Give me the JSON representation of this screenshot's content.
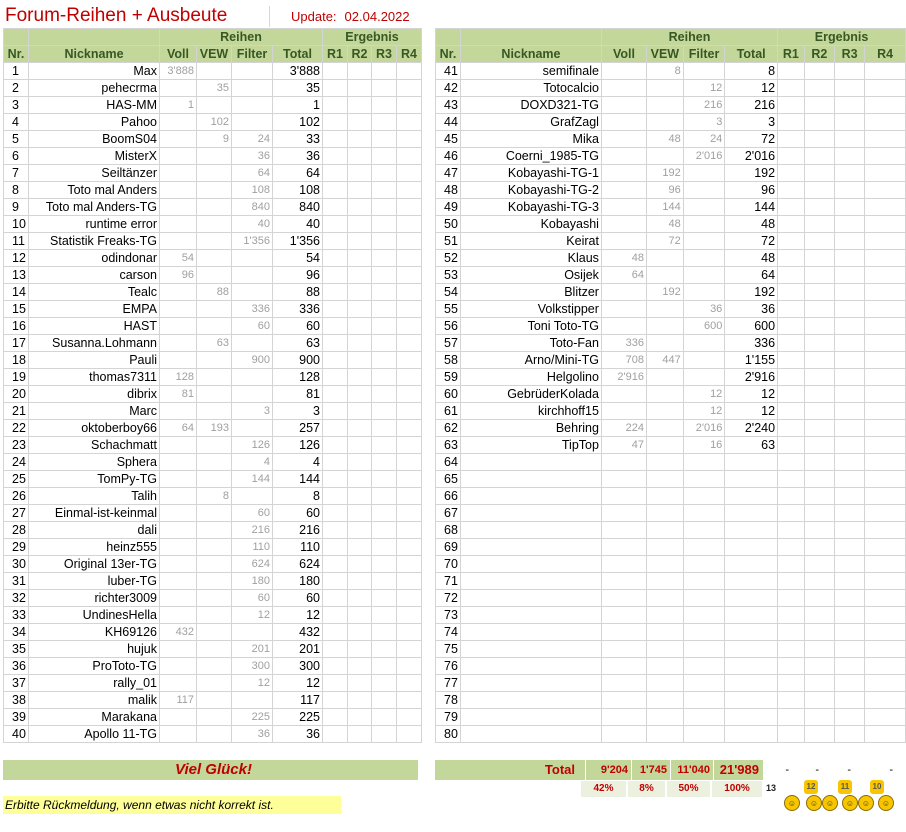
{
  "header": {
    "title": "Forum-Reihen + Ausbeute",
    "update_label": "Update:",
    "update_date": "02.04.2022"
  },
  "table_header": {
    "group_reihen": "Reihen",
    "group_ergebnis": "Ergebnis",
    "col_nr": "Nr.",
    "col_nick": "Nickname",
    "col_voll": "Voll",
    "col_vew": "VEW",
    "col_filter": "Filter",
    "col_total": "Total",
    "col_r1": "R1",
    "col_r2": "R2",
    "col_r3": "R3",
    "col_r4": "R4"
  },
  "left_rows": [
    {
      "nr": "1",
      "nick": "Max",
      "voll": "3'888",
      "vew": "",
      "filter": "",
      "total": "3'888"
    },
    {
      "nr": "2",
      "nick": "pehecrma",
      "voll": "",
      "vew": "35",
      "filter": "",
      "total": "35"
    },
    {
      "nr": "3",
      "nick": "HAS-MM",
      "voll": "1",
      "vew": "",
      "filter": "",
      "total": "1"
    },
    {
      "nr": "4",
      "nick": "Pahoo",
      "voll": "",
      "vew": "102",
      "filter": "",
      "total": "102"
    },
    {
      "nr": "5",
      "nick": "BoomS04",
      "voll": "",
      "vew": "9",
      "filter": "24",
      "total": "33"
    },
    {
      "nr": "6",
      "nick": "MisterX",
      "voll": "",
      "vew": "",
      "filter": "36",
      "total": "36"
    },
    {
      "nr": "7",
      "nick": "Seiltänzer",
      "voll": "",
      "vew": "",
      "filter": "64",
      "total": "64"
    },
    {
      "nr": "8",
      "nick": "Toto mal Anders",
      "voll": "",
      "vew": "",
      "filter": "108",
      "total": "108"
    },
    {
      "nr": "9",
      "nick": "Toto mal Anders-TG",
      "voll": "",
      "vew": "",
      "filter": "840",
      "total": "840"
    },
    {
      "nr": "10",
      "nick": "runtime error",
      "voll": "",
      "vew": "",
      "filter": "40",
      "total": "40"
    },
    {
      "nr": "11",
      "nick": "Statistik Freaks-TG",
      "voll": "",
      "vew": "",
      "filter": "1'356",
      "total": "1'356"
    },
    {
      "nr": "12",
      "nick": "odindonar",
      "voll": "54",
      "vew": "",
      "filter": "",
      "total": "54"
    },
    {
      "nr": "13",
      "nick": "carson",
      "voll": "96",
      "vew": "",
      "filter": "",
      "total": "96"
    },
    {
      "nr": "14",
      "nick": "Tealc",
      "voll": "",
      "vew": "88",
      "filter": "",
      "total": "88"
    },
    {
      "nr": "15",
      "nick": "EMPA",
      "voll": "",
      "vew": "",
      "filter": "336",
      "total": "336"
    },
    {
      "nr": "16",
      "nick": "HAST",
      "voll": "",
      "vew": "",
      "filter": "60",
      "total": "60"
    },
    {
      "nr": "17",
      "nick": "Susanna.Lohmann",
      "voll": "",
      "vew": "63",
      "filter": "",
      "total": "63"
    },
    {
      "nr": "18",
      "nick": "Pauli",
      "voll": "",
      "vew": "",
      "filter": "900",
      "total": "900"
    },
    {
      "nr": "19",
      "nick": "thomas7311",
      "voll": "128",
      "vew": "",
      "filter": "",
      "total": "128"
    },
    {
      "nr": "20",
      "nick": "dibrix",
      "voll": "81",
      "vew": "",
      "filter": "",
      "total": "81"
    },
    {
      "nr": "21",
      "nick": "Marc",
      "voll": "",
      "vew": "",
      "filter": "3",
      "total": "3"
    },
    {
      "nr": "22",
      "nick": "oktoberboy66",
      "voll": "64",
      "vew": "193",
      "filter": "",
      "total": "257"
    },
    {
      "nr": "23",
      "nick": "Schachmatt",
      "voll": "",
      "vew": "",
      "filter": "126",
      "total": "126"
    },
    {
      "nr": "24",
      "nick": "Sphera",
      "voll": "",
      "vew": "",
      "filter": "4",
      "total": "4"
    },
    {
      "nr": "25",
      "nick": "TomPy-TG",
      "voll": "",
      "vew": "",
      "filter": "144",
      "total": "144"
    },
    {
      "nr": "26",
      "nick": "Talih",
      "voll": "",
      "vew": "8",
      "filter": "",
      "total": "8"
    },
    {
      "nr": "27",
      "nick": "Einmal-ist-keinmal",
      "voll": "",
      "vew": "",
      "filter": "60",
      "total": "60"
    },
    {
      "nr": "28",
      "nick": "dali",
      "voll": "",
      "vew": "",
      "filter": "216",
      "total": "216"
    },
    {
      "nr": "29",
      "nick": "heinz555",
      "voll": "",
      "vew": "",
      "filter": "110",
      "total": "110"
    },
    {
      "nr": "30",
      "nick": "Original 13er-TG",
      "voll": "",
      "vew": "",
      "filter": "624",
      "total": "624"
    },
    {
      "nr": "31",
      "nick": "luber-TG",
      "voll": "",
      "vew": "",
      "filter": "180",
      "total": "180"
    },
    {
      "nr": "32",
      "nick": "richter3009",
      "voll": "",
      "vew": "",
      "filter": "60",
      "total": "60"
    },
    {
      "nr": "33",
      "nick": "UndinesHella",
      "voll": "",
      "vew": "",
      "filter": "12",
      "total": "12"
    },
    {
      "nr": "34",
      "nick": "KH69126",
      "voll": "432",
      "vew": "",
      "filter": "",
      "total": "432"
    },
    {
      "nr": "35",
      "nick": "hujuk",
      "voll": "",
      "vew": "",
      "filter": "201",
      "total": "201"
    },
    {
      "nr": "36",
      "nick": "ProToto-TG",
      "voll": "",
      "vew": "",
      "filter": "300",
      "total": "300"
    },
    {
      "nr": "37",
      "nick": "rally_01",
      "voll": "",
      "vew": "",
      "filter": "12",
      "total": "12"
    },
    {
      "nr": "38",
      "nick": "malik",
      "voll": "117",
      "vew": "",
      "filter": "",
      "total": "117"
    },
    {
      "nr": "39",
      "nick": "Marakana",
      "voll": "",
      "vew": "",
      "filter": "225",
      "total": "225"
    },
    {
      "nr": "40",
      "nick": "Apollo 11-TG",
      "voll": "",
      "vew": "",
      "filter": "36",
      "total": "36"
    }
  ],
  "right_rows": [
    {
      "nr": "41",
      "nick": "semifinale",
      "voll": "",
      "vew": "8",
      "filter": "",
      "total": "8"
    },
    {
      "nr": "42",
      "nick": "Totocalcio",
      "voll": "",
      "vew": "",
      "filter": "12",
      "total": "12"
    },
    {
      "nr": "43",
      "nick": "DOXD321-TG",
      "voll": "",
      "vew": "",
      "filter": "216",
      "total": "216"
    },
    {
      "nr": "44",
      "nick": "GrafZagl",
      "voll": "",
      "vew": "",
      "filter": "3",
      "total": "3"
    },
    {
      "nr": "45",
      "nick": "Mika",
      "voll": "",
      "vew": "48",
      "filter": "24",
      "total": "72"
    },
    {
      "nr": "46",
      "nick": "Coerni_1985-TG",
      "voll": "",
      "vew": "",
      "filter": "2'016",
      "total": "2'016"
    },
    {
      "nr": "47",
      "nick": "Kobayashi-TG-1",
      "voll": "",
      "vew": "192",
      "filter": "",
      "total": "192"
    },
    {
      "nr": "48",
      "nick": "Kobayashi-TG-2",
      "voll": "",
      "vew": "96",
      "filter": "",
      "total": "96"
    },
    {
      "nr": "49",
      "nick": "Kobayashi-TG-3",
      "voll": "",
      "vew": "144",
      "filter": "",
      "total": "144"
    },
    {
      "nr": "50",
      "nick": "Kobayashi",
      "voll": "",
      "vew": "48",
      "filter": "",
      "total": "48"
    },
    {
      "nr": "51",
      "nick": "Keirat",
      "voll": "",
      "vew": "72",
      "filter": "",
      "total": "72"
    },
    {
      "nr": "52",
      "nick": "Klaus",
      "voll": "48",
      "vew": "",
      "filter": "",
      "total": "48"
    },
    {
      "nr": "53",
      "nick": "Osijek",
      "voll": "64",
      "vew": "",
      "filter": "",
      "total": "64"
    },
    {
      "nr": "54",
      "nick": "Blitzer",
      "voll": "",
      "vew": "192",
      "filter": "",
      "total": "192"
    },
    {
      "nr": "55",
      "nick": "Volkstipper",
      "voll": "",
      "vew": "",
      "filter": "36",
      "total": "36"
    },
    {
      "nr": "56",
      "nick": "Toni Toto-TG",
      "voll": "",
      "vew": "",
      "filter": "600",
      "total": "600"
    },
    {
      "nr": "57",
      "nick": "Toto-Fan",
      "voll": "336",
      "vew": "",
      "filter": "",
      "total": "336"
    },
    {
      "nr": "58",
      "nick": "Arno/Mini-TG",
      "voll": "708",
      "vew": "447",
      "filter": "",
      "total": "1'155"
    },
    {
      "nr": "59",
      "nick": "Helgolino",
      "voll": "2'916",
      "vew": "",
      "filter": "",
      "total": "2'916"
    },
    {
      "nr": "60",
      "nick": "GebrüderKolada",
      "voll": "",
      "vew": "",
      "filter": "12",
      "total": "12"
    },
    {
      "nr": "61",
      "nick": "kirchhoff15",
      "voll": "",
      "vew": "",
      "filter": "12",
      "total": "12"
    },
    {
      "nr": "62",
      "nick": "Behring",
      "voll": "224",
      "vew": "",
      "filter": "2'016",
      "total": "2'240"
    },
    {
      "nr": "63",
      "nick": "TipTop",
      "voll": "47",
      "vew": "",
      "filter": "16",
      "total": "63"
    },
    {
      "nr": "64",
      "nick": "",
      "voll": "",
      "vew": "",
      "filter": "",
      "total": ""
    },
    {
      "nr": "65",
      "nick": "",
      "voll": "",
      "vew": "",
      "filter": "",
      "total": ""
    },
    {
      "nr": "66",
      "nick": "",
      "voll": "",
      "vew": "",
      "filter": "",
      "total": ""
    },
    {
      "nr": "67",
      "nick": "",
      "voll": "",
      "vew": "",
      "filter": "",
      "total": ""
    },
    {
      "nr": "68",
      "nick": "",
      "voll": "",
      "vew": "",
      "filter": "",
      "total": ""
    },
    {
      "nr": "69",
      "nick": "",
      "voll": "",
      "vew": "",
      "filter": "",
      "total": ""
    },
    {
      "nr": "70",
      "nick": "",
      "voll": "",
      "vew": "",
      "filter": "",
      "total": ""
    },
    {
      "nr": "71",
      "nick": "",
      "voll": "",
      "vew": "",
      "filter": "",
      "total": ""
    },
    {
      "nr": "72",
      "nick": "",
      "voll": "",
      "vew": "",
      "filter": "",
      "total": ""
    },
    {
      "nr": "73",
      "nick": "",
      "voll": "",
      "vew": "",
      "filter": "",
      "total": ""
    },
    {
      "nr": "74",
      "nick": "",
      "voll": "",
      "vew": "",
      "filter": "",
      "total": ""
    },
    {
      "nr": "75",
      "nick": "",
      "voll": "",
      "vew": "",
      "filter": "",
      "total": ""
    },
    {
      "nr": "76",
      "nick": "",
      "voll": "",
      "vew": "",
      "filter": "",
      "total": ""
    },
    {
      "nr": "77",
      "nick": "",
      "voll": "",
      "vew": "",
      "filter": "",
      "total": ""
    },
    {
      "nr": "78",
      "nick": "",
      "voll": "",
      "vew": "",
      "filter": "",
      "total": ""
    },
    {
      "nr": "79",
      "nick": "",
      "voll": "",
      "vew": "",
      "filter": "",
      "total": ""
    },
    {
      "nr": "80",
      "nick": "",
      "voll": "",
      "vew": "",
      "filter": "",
      "total": ""
    }
  ],
  "footer": {
    "good_luck": "Viel Glück!",
    "total_label": "Total",
    "total_voll": "9'204",
    "total_vew": "1'745",
    "total_filter": "11'040",
    "total_all": "21'989",
    "r1": "-",
    "r2": "-",
    "r3": "-",
    "r4": "-",
    "pct_voll": "42%",
    "pct_vew": "8%",
    "pct_filter": "50%",
    "pct_all": "100%",
    "note": "Erbitte Rückmeldung, wenn etwas nicht korrekt ist.",
    "icon_labels": [
      "13",
      "12",
      "11",
      "10"
    ]
  },
  "colors": {
    "header_green": "#c4d79b",
    "header_text": "#385723",
    "title_red": "#c00000",
    "note_yellow": "#ffff99"
  }
}
